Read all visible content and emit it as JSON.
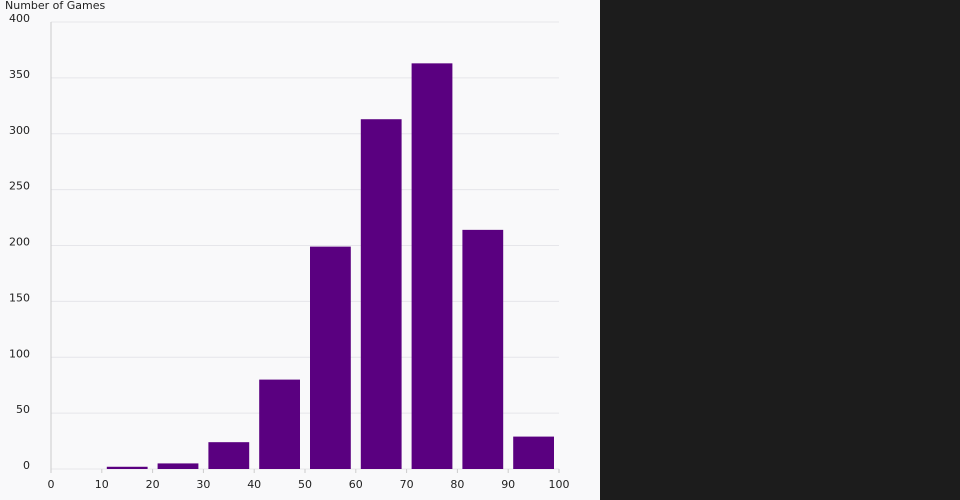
{
  "chart_data": {
    "type": "histogram",
    "y_label": "Number of Games",
    "bins": [
      0,
      10,
      20,
      30,
      40,
      50,
      60,
      70,
      80,
      90,
      100
    ],
    "values": [
      0,
      2,
      5,
      24,
      80,
      199,
      313,
      363,
      214,
      29
    ],
    "color": "#5a0080",
    "xlim": [
      0,
      100
    ],
    "xticks": [
      0,
      10,
      20,
      30,
      40,
      50,
      60,
      70,
      80,
      90,
      100
    ],
    "ylim": [
      0,
      400
    ],
    "yticks": [
      0,
      50,
      100,
      150,
      200,
      250,
      300,
      350,
      400
    ],
    "grid": true
  }
}
